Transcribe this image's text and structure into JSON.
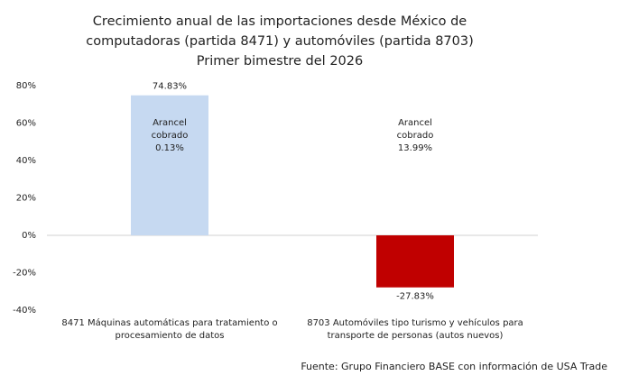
{
  "chart_data": {
    "type": "bar",
    "title": [
      "Crecimiento anual de las importaciones desde México de",
      "computadoras (partida 8471) y automóviles (partida 8703)",
      "Primer bimestre del 2026"
    ],
    "categories": [
      "8471 Máquinas automáticas para tratamiento o procesamiento de datos",
      "8703 Automóviles tipo turismo y vehículos para transporte de personas (autos nuevos)"
    ],
    "values": [
      74.83,
      -27.83
    ],
    "value_labels": [
      "74.83%",
      "-27.83%"
    ],
    "colors": [
      "#c6d9f1",
      "#c00000"
    ],
    "annotations": [
      "Arancel cobrado 0.13%",
      "Arancel cobrado 13.99%"
    ],
    "ylim": [
      -40,
      80
    ],
    "yticks": [
      {
        "value": -40,
        "label": "-40%"
      },
      {
        "value": -20,
        "label": "-20%"
      },
      {
        "value": 0,
        "label": "0%"
      },
      {
        "value": 20,
        "label": "20%"
      },
      {
        "value": 40,
        "label": "40%"
      },
      {
        "value": 60,
        "label": "60%"
      },
      {
        "value": 80,
        "label": "80%"
      }
    ],
    "grid": false,
    "source": "Fuente: Grupo Financiero BASE con información de USA Trade"
  }
}
